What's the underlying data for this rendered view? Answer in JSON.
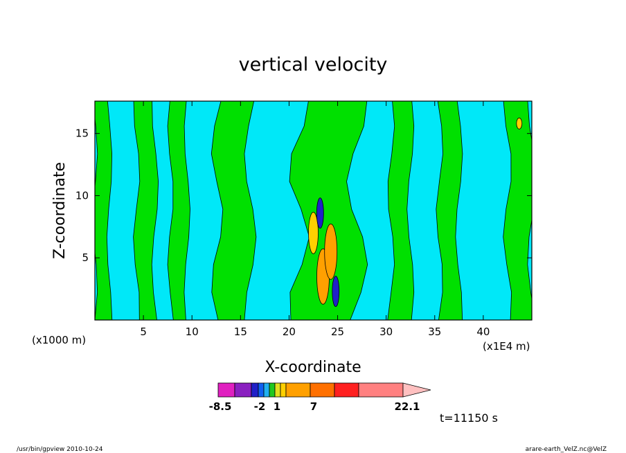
{
  "chart_data": {
    "type": "heatmap",
    "title": "vertical velocity",
    "xlabel": "X-coordinate",
    "ylabel": "Z-coordinate",
    "x_unit_left": "(x1000 m)",
    "x_unit_right": "(x1E4 m)",
    "xlim": [
      0,
      45
    ],
    "ylim": [
      0,
      17.6
    ],
    "x_ticks": [
      5,
      10,
      15,
      20,
      25,
      30,
      35,
      40
    ],
    "y_ticks": [
      5,
      10,
      15
    ],
    "time_label": "t=11150 s",
    "colorbar": {
      "labels": [
        {
          "text": "-8.5",
          "value": -8.5
        },
        {
          "text": "-2",
          "value": -2
        },
        {
          "text": "1",
          "value": 1
        },
        {
          "text": "7",
          "value": 7
        },
        {
          "text": "22.1",
          "value": 22.1
        }
      ],
      "colors": [
        "#e020c0",
        "#8a20c0",
        "#2020c8",
        "#1060f0",
        "#20b0f0",
        "#20c820",
        "#e0e020",
        "#ffd000",
        "#ffa000",
        "#ff7000",
        "#ff2020",
        "#ff8080",
        "#ffc0c0"
      ],
      "min_arrow": "none",
      "max_arrow": "triangle"
    },
    "palette": {
      "background": "#00e8f8",
      "updraft_weak": "#00e000",
      "updraft_mid": "#ffd000",
      "updraft_strong": "#ffa000",
      "downdraft": "#2020c8"
    },
    "bands": [
      {
        "x": [
          0.0,
          1.5
        ],
        "level": "updraft_weak"
      },
      {
        "x": [
          4.3,
          6.2
        ],
        "level": "updraft_weak"
      },
      {
        "x": [
          7.8,
          9.5
        ],
        "level": "updraft_weak"
      },
      {
        "x": [
          12.6,
          16.0
        ],
        "level": "updraft_weak"
      },
      {
        "x": [
          21.0,
          27.0
        ],
        "level": "updraft_weak"
      },
      {
        "x": [
          30.5,
          32.5
        ],
        "level": "updraft_weak"
      },
      {
        "x": [
          35.5,
          37.5
        ],
        "level": "updraft_weak"
      },
      {
        "x": [
          42.5,
          45.0
        ],
        "level": "updraft_weak"
      }
    ],
    "cells": [
      {
        "x": 22.5,
        "z": 7.0,
        "level": "updraft_mid"
      },
      {
        "x": 23.5,
        "z": 3.5,
        "level": "updraft_strong"
      },
      {
        "x": 24.3,
        "z": 5.5,
        "level": "updraft_strong"
      },
      {
        "x": 23.2,
        "z": 8.6,
        "level": "downdraft"
      },
      {
        "x": 24.8,
        "z": 2.3,
        "level": "downdraft"
      },
      {
        "x": 43.7,
        "z": 15.8,
        "level": "updraft_mid"
      }
    ]
  },
  "footer": {
    "left": "/usr/bin/gpview   2010-10-24",
    "right": "arare-earth_VelZ.nc@VelZ"
  }
}
